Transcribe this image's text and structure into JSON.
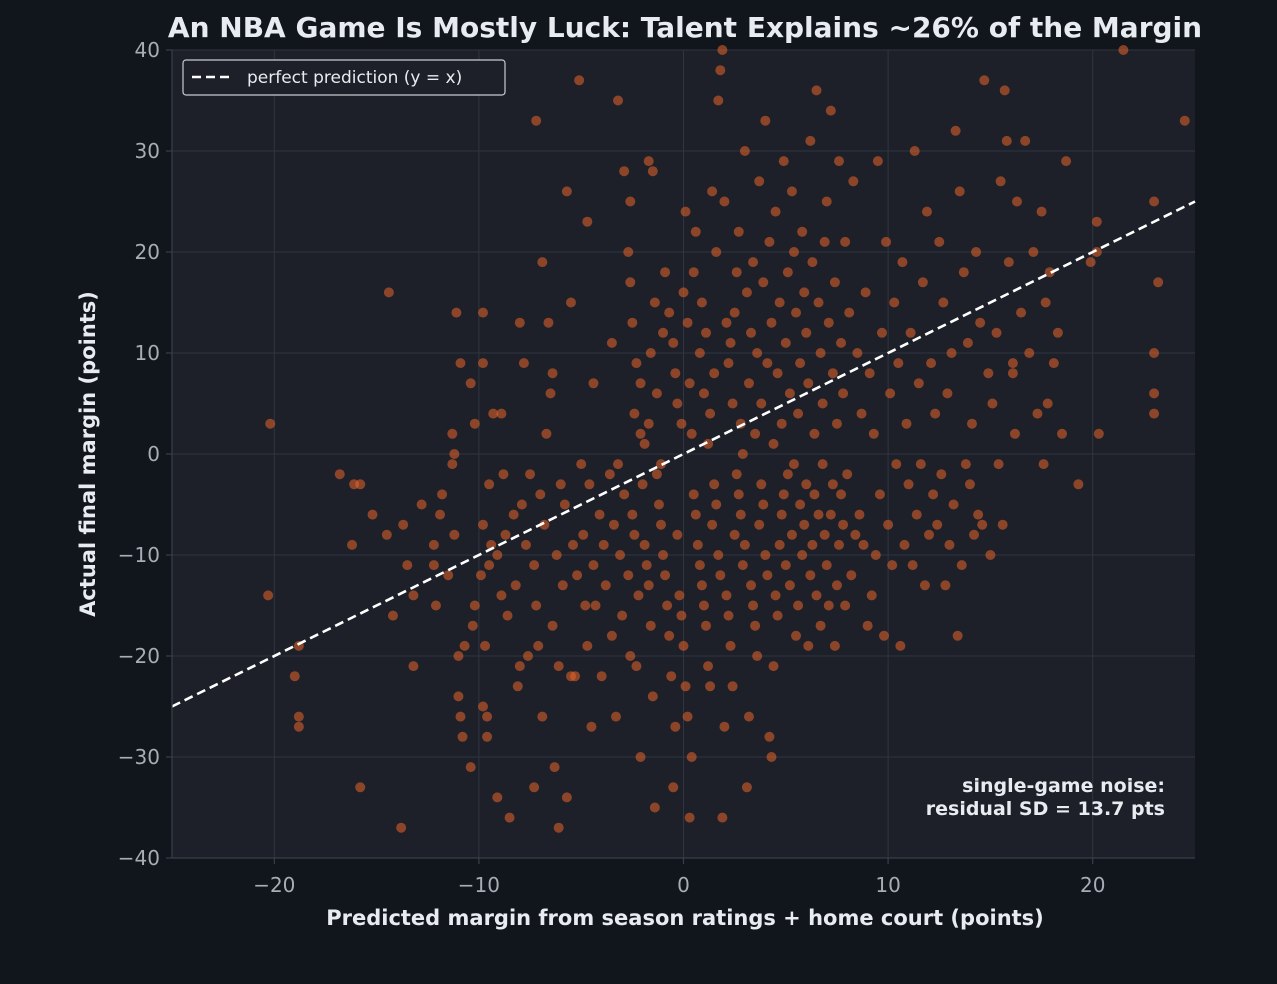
{
  "chart_data": {
    "type": "scatter",
    "title": "An NBA Game Is Mostly Luck: Talent Explains ~26% of the Margin",
    "xlabel": "Predicted margin from season ratings + home court (points)",
    "ylabel": "Actual final margin (points)",
    "xlim": [
      -25,
      25
    ],
    "ylim": [
      -40,
      40
    ],
    "xticks": [
      -20,
      -10,
      0,
      10,
      20
    ],
    "yticks": [
      -40,
      -30,
      -20,
      -10,
      0,
      10,
      20,
      30,
      40
    ],
    "xtick_labels": [
      "−20",
      "−10",
      "0",
      "10",
      "20"
    ],
    "ytick_labels": [
      "−40",
      "−30",
      "−20",
      "−10",
      "0",
      "10",
      "20",
      "30",
      "40"
    ],
    "grid": true,
    "legend": {
      "position": "top-left",
      "entries": [
        "perfect prediction (y = x)"
      ]
    },
    "reference_line": {
      "name": "perfect prediction (y = x)",
      "slope": 1,
      "intercept": 0,
      "style": "dashed",
      "color": "#ffffff"
    },
    "annotation": {
      "line1": "single-game noise:",
      "line2": "residual SD = 13.7 pts",
      "position": "bottom-right"
    },
    "point_color": "#e8642a",
    "points": [
      [
        -20.2,
        3
      ],
      [
        -20.3,
        -14
      ],
      [
        -18.8,
        -19
      ],
      [
        -18.8,
        -26
      ],
      [
        -18.8,
        -27
      ],
      [
        -19,
        -22
      ],
      [
        -16.8,
        -2
      ],
      [
        -16.1,
        -3
      ],
      [
        -16.2,
        -9
      ],
      [
        -15.8,
        -33
      ],
      [
        -15.8,
        -3
      ],
      [
        -15.2,
        -6
      ],
      [
        -14.4,
        16
      ],
      [
        -14.5,
        -8
      ],
      [
        -14.2,
        -16
      ],
      [
        -13.7,
        -7
      ],
      [
        -13.8,
        -37
      ],
      [
        -13.5,
        -11
      ],
      [
        -13.2,
        -14
      ],
      [
        -13.2,
        -21
      ],
      [
        -12.8,
        -5
      ],
      [
        -12.2,
        -9
      ],
      [
        -12.2,
        -11
      ],
      [
        -12.1,
        -15
      ],
      [
        -11.8,
        -4
      ],
      [
        -11.9,
        -6
      ],
      [
        -11.5,
        -12
      ],
      [
        -11.3,
        -1
      ],
      [
        -11.2,
        -8
      ],
      [
        -11,
        -20
      ],
      [
        -11,
        -24
      ],
      [
        -10.9,
        -26
      ],
      [
        -10.8,
        -28
      ],
      [
        -10.7,
        -19
      ],
      [
        -11.2,
        0
      ],
      [
        -11.3,
        2
      ],
      [
        -11.1,
        14
      ],
      [
        -10.9,
        9
      ],
      [
        -10.4,
        -31
      ],
      [
        -10.3,
        -17
      ],
      [
        -10.2,
        -15
      ],
      [
        -10.2,
        3
      ],
      [
        -9.9,
        -12
      ],
      [
        -9.8,
        -7
      ],
      [
        -9.7,
        -19
      ],
      [
        -9.5,
        -11
      ],
      [
        -9.4,
        -9
      ],
      [
        -9.8,
        -25
      ],
      [
        -9.5,
        -3
      ],
      [
        -9.6,
        -26
      ],
      [
        -10.4,
        7
      ],
      [
        -9.8,
        9
      ],
      [
        -9.3,
        4
      ],
      [
        -9.1,
        -34
      ],
      [
        -9.1,
        -10
      ],
      [
        -8.9,
        -14
      ],
      [
        -8.8,
        -2
      ],
      [
        -8.7,
        -8
      ],
      [
        -8.6,
        -16
      ],
      [
        -8.5,
        -36
      ],
      [
        -9.6,
        -28
      ],
      [
        -9.8,
        14
      ],
      [
        -8.9,
        4
      ],
      [
        -8.3,
        -6
      ],
      [
        -8.2,
        -13
      ],
      [
        -8.1,
        -23
      ],
      [
        -8,
        -21
      ],
      [
        -7.9,
        -5
      ],
      [
        -7.7,
        -9
      ],
      [
        -7.6,
        -20
      ],
      [
        -7.5,
        -2
      ],
      [
        -7.3,
        -33
      ],
      [
        -8,
        13
      ],
      [
        -7.8,
        9
      ],
      [
        -7.3,
        -11
      ],
      [
        -7.2,
        -15
      ],
      [
        -7.1,
        -19
      ],
      [
        -7,
        -4
      ],
      [
        -6.9,
        -26
      ],
      [
        -6.8,
        -7
      ],
      [
        -6.7,
        2
      ],
      [
        -6.5,
        6
      ],
      [
        -6.4,
        -17
      ],
      [
        -6.3,
        -31
      ],
      [
        -7.2,
        33
      ],
      [
        -6.9,
        19
      ],
      [
        -6.6,
        13
      ],
      [
        -6.4,
        8
      ],
      [
        -6.2,
        -10
      ],
      [
        -6.1,
        -21
      ],
      [
        -6,
        -3
      ],
      [
        -5.9,
        -13
      ],
      [
        -5.8,
        -5
      ],
      [
        -5.7,
        -34
      ],
      [
        -5.5,
        -22
      ],
      [
        -5.4,
        -9
      ],
      [
        -6.1,
        -37
      ],
      [
        -5.7,
        26
      ],
      [
        -5.5,
        15
      ],
      [
        -5.3,
        -22
      ],
      [
        -5.2,
        -12
      ],
      [
        -5,
        -1
      ],
      [
        -4.9,
        -8
      ],
      [
        -4.8,
        -15
      ],
      [
        -4.7,
        -19
      ],
      [
        -4.6,
        -3
      ],
      [
        -4.5,
        -27
      ],
      [
        -4.4,
        -11
      ],
      [
        -5.1,
        37
      ],
      [
        -4.7,
        23
      ],
      [
        -4.4,
        7
      ],
      [
        -4.3,
        -15
      ],
      [
        -4.1,
        -6
      ],
      [
        -4,
        -22
      ],
      [
        -3.9,
        -9
      ],
      [
        -3.8,
        -13
      ],
      [
        -3.6,
        -2
      ],
      [
        -3.5,
        -18
      ],
      [
        -3.4,
        -7
      ],
      [
        -3.3,
        -26
      ],
      [
        -3.5,
        11
      ],
      [
        -3.2,
        -1
      ],
      [
        -3.1,
        -10
      ],
      [
        -3,
        -16
      ],
      [
        -2.9,
        -4
      ],
      [
        -2.7,
        -12
      ],
      [
        -2.6,
        -20
      ],
      [
        -2.5,
        -6
      ],
      [
        -2.4,
        -8
      ],
      [
        -2.3,
        -21
      ],
      [
        -2.2,
        -14
      ],
      [
        -2.1,
        -30
      ],
      [
        -3.2,
        35
      ],
      [
        -2.9,
        28
      ],
      [
        -2.6,
        25
      ],
      [
        -2.4,
        4
      ],
      [
        -2.1,
        7
      ],
      [
        -2,
        -3
      ],
      [
        -1.9,
        -9
      ],
      [
        -1.8,
        -11
      ],
      [
        -1.7,
        -13
      ],
      [
        -1.6,
        -17
      ],
      [
        -1.5,
        -24
      ],
      [
        -1.4,
        -35
      ],
      [
        -1.7,
        29
      ],
      [
        -1.5,
        28
      ],
      [
        -1.3,
        -2
      ],
      [
        -1.2,
        -5
      ],
      [
        -1.1,
        -7
      ],
      [
        -1,
        -10
      ],
      [
        -0.9,
        -12
      ],
      [
        -0.8,
        -15
      ],
      [
        -0.7,
        -18
      ],
      [
        -0.6,
        -22
      ],
      [
        -0.5,
        -33
      ],
      [
        -0.4,
        -27
      ],
      [
        -2.7,
        20
      ],
      [
        -2.6,
        17
      ],
      [
        -2.5,
        13
      ],
      [
        -2.3,
        9
      ],
      [
        -2.1,
        2
      ],
      [
        -1.9,
        1
      ],
      [
        -1.7,
        3
      ],
      [
        -1.6,
        10
      ],
      [
        -1.4,
        15
      ],
      [
        -1.3,
        6
      ],
      [
        -1.1,
        -1
      ],
      [
        -1,
        12
      ],
      [
        -0.3,
        -8
      ],
      [
        -0.2,
        -14
      ],
      [
        -0.1,
        -16
      ],
      [
        0,
        -19
      ],
      [
        0.1,
        -23
      ],
      [
        0.2,
        -26
      ],
      [
        0.3,
        -36
      ],
      [
        0.4,
        -30
      ],
      [
        0.5,
        -4
      ],
      [
        0.6,
        -6
      ],
      [
        0.7,
        -9
      ],
      [
        0.8,
        -11
      ],
      [
        -0.9,
        18
      ],
      [
        -0.7,
        14
      ],
      [
        -0.5,
        11
      ],
      [
        -0.4,
        8
      ],
      [
        -0.3,
        5
      ],
      [
        -0.1,
        3
      ],
      [
        0,
        16
      ],
      [
        0.1,
        24
      ],
      [
        0.2,
        13
      ],
      [
        0.3,
        7
      ],
      [
        0.4,
        2
      ],
      [
        0.5,
        18
      ],
      [
        0.9,
        -13
      ],
      [
        1,
        -15
      ],
      [
        1.1,
        -17
      ],
      [
        1.2,
        -21
      ],
      [
        1.3,
        -23
      ],
      [
        1.4,
        -7
      ],
      [
        1.5,
        -3
      ],
      [
        1.6,
        -5
      ],
      [
        1.7,
        -10
      ],
      [
        1.8,
        -12
      ],
      [
        1.9,
        -36
      ],
      [
        2,
        -27
      ],
      [
        0.6,
        22
      ],
      [
        0.8,
        10
      ],
      [
        0.9,
        15
      ],
      [
        1,
        6
      ],
      [
        1.1,
        12
      ],
      [
        1.2,
        1
      ],
      [
        1.3,
        4
      ],
      [
        1.4,
        26
      ],
      [
        1.5,
        8
      ],
      [
        1.6,
        20
      ],
      [
        1.7,
        35
      ],
      [
        1.8,
        38
      ],
      [
        2.1,
        -14
      ],
      [
        2.2,
        -16
      ],
      [
        2.3,
        -19
      ],
      [
        2.4,
        -23
      ],
      [
        2.5,
        -8
      ],
      [
        2.6,
        -2
      ],
      [
        2.7,
        -4
      ],
      [
        2.8,
        -6
      ],
      [
        2.9,
        -11
      ],
      [
        3,
        -9
      ],
      [
        3.1,
        -33
      ],
      [
        3.2,
        -26
      ],
      [
        1.9,
        40
      ],
      [
        2,
        25
      ],
      [
        2.1,
        13
      ],
      [
        2.2,
        9
      ],
      [
        2.3,
        11
      ],
      [
        2.4,
        5
      ],
      [
        2.5,
        14
      ],
      [
        2.6,
        18
      ],
      [
        2.7,
        22
      ],
      [
        2.8,
        3
      ],
      [
        2.9,
        0
      ],
      [
        3,
        30
      ],
      [
        3.3,
        -13
      ],
      [
        3.4,
        -15
      ],
      [
        3.5,
        -17
      ],
      [
        3.6,
        -20
      ],
      [
        3.7,
        -7
      ],
      [
        3.8,
        -3
      ],
      [
        3.9,
        -5
      ],
      [
        4,
        -10
      ],
      [
        4.1,
        -12
      ],
      [
        4.2,
        -28
      ],
      [
        4.3,
        -30
      ],
      [
        4.4,
        -21
      ],
      [
        3.1,
        16
      ],
      [
        3.2,
        7
      ],
      [
        3.3,
        12
      ],
      [
        3.4,
        19
      ],
      [
        3.5,
        2
      ],
      [
        3.6,
        10
      ],
      [
        3.7,
        27
      ],
      [
        3.8,
        5
      ],
      [
        3.9,
        17
      ],
      [
        4,
        33
      ],
      [
        4.1,
        9
      ],
      [
        4.2,
        21
      ],
      [
        4.5,
        -14
      ],
      [
        4.6,
        -16
      ],
      [
        4.7,
        -9
      ],
      [
        4.8,
        -6
      ],
      [
        4.9,
        -4
      ],
      [
        5,
        -11
      ],
      [
        5.1,
        -2
      ],
      [
        5.2,
        -13
      ],
      [
        5.3,
        -8
      ],
      [
        5.4,
        -1
      ],
      [
        5.5,
        -18
      ],
      [
        5.6,
        -15
      ],
      [
        4.3,
        13
      ],
      [
        4.4,
        1
      ],
      [
        4.5,
        24
      ],
      [
        4.6,
        8
      ],
      [
        4.7,
        15
      ],
      [
        4.8,
        3
      ],
      [
        4.9,
        29
      ],
      [
        5,
        11
      ],
      [
        5.1,
        18
      ],
      [
        5.2,
        6
      ],
      [
        5.3,
        26
      ],
      [
        5.4,
        20
      ],
      [
        5.7,
        -5
      ],
      [
        5.8,
        -10
      ],
      [
        5.9,
        -7
      ],
      [
        6,
        -3
      ],
      [
        6.1,
        -19
      ],
      [
        6.2,
        -12
      ],
      [
        6.3,
        -9
      ],
      [
        6.4,
        -4
      ],
      [
        6.5,
        -14
      ],
      [
        6.6,
        -6
      ],
      [
        6.7,
        -17
      ],
      [
        6.8,
        -1
      ],
      [
        5.5,
        14
      ],
      [
        5.6,
        4
      ],
      [
        5.7,
        9
      ],
      [
        5.8,
        22
      ],
      [
        5.9,
        16
      ],
      [
        6,
        12
      ],
      [
        6.1,
        7
      ],
      [
        6.2,
        31
      ],
      [
        6.3,
        19
      ],
      [
        6.4,
        2
      ],
      [
        6.5,
        36
      ],
      [
        6.6,
        15
      ],
      [
        6.9,
        -8
      ],
      [
        7,
        -11
      ],
      [
        7.1,
        -15
      ],
      [
        7.2,
        -6
      ],
      [
        7.3,
        -3
      ],
      [
        7.4,
        -19
      ],
      [
        7.5,
        -13
      ],
      [
        7.6,
        -9
      ],
      [
        7.7,
        -4
      ],
      [
        7.8,
        -7
      ],
      [
        7.9,
        -15
      ],
      [
        8,
        -2
      ],
      [
        6.7,
        10
      ],
      [
        6.8,
        5
      ],
      [
        6.9,
        21
      ],
      [
        7,
        25
      ],
      [
        7.1,
        13
      ],
      [
        7.2,
        34
      ],
      [
        7.3,
        8
      ],
      [
        7.4,
        17
      ],
      [
        7.5,
        3
      ],
      [
        7.6,
        29
      ],
      [
        7.7,
        11
      ],
      [
        7.8,
        6
      ],
      [
        8.2,
        -12
      ],
      [
        8.4,
        -8
      ],
      [
        8.6,
        -6
      ],
      [
        8.8,
        -9
      ],
      [
        9,
        -17
      ],
      [
        9.2,
        -14
      ],
      [
        9.4,
        -10
      ],
      [
        9.6,
        -4
      ],
      [
        9.8,
        -18
      ],
      [
        10,
        -7
      ],
      [
        10.2,
        -11
      ],
      [
        10.4,
        -1
      ],
      [
        7.9,
        21
      ],
      [
        8.1,
        14
      ],
      [
        8.3,
        27
      ],
      [
        8.5,
        10
      ],
      [
        8.7,
        4
      ],
      [
        8.9,
        16
      ],
      [
        9.1,
        8
      ],
      [
        9.3,
        2
      ],
      [
        9.5,
        29
      ],
      [
        9.7,
        12
      ],
      [
        9.9,
        21
      ],
      [
        10.1,
        6
      ],
      [
        10.6,
        -19
      ],
      [
        10.8,
        -9
      ],
      [
        11,
        -3
      ],
      [
        11.2,
        -11
      ],
      [
        11.4,
        -6
      ],
      [
        11.6,
        -1
      ],
      [
        11.8,
        -13
      ],
      [
        12,
        -8
      ],
      [
        12.2,
        -4
      ],
      [
        12.4,
        -7
      ],
      [
        12.6,
        -2
      ],
      [
        12.8,
        -13
      ],
      [
        10.3,
        15
      ],
      [
        10.5,
        9
      ],
      [
        10.7,
        19
      ],
      [
        10.9,
        3
      ],
      [
        11.1,
        12
      ],
      [
        11.3,
        30
      ],
      [
        11.5,
        7
      ],
      [
        11.7,
        17
      ],
      [
        11.9,
        24
      ],
      [
        12.1,
        9
      ],
      [
        12.3,
        4
      ],
      [
        12.5,
        21
      ],
      [
        13,
        -9
      ],
      [
        13.2,
        -5
      ],
      [
        13.4,
        -18
      ],
      [
        13.6,
        -11
      ],
      [
        13.8,
        -1
      ],
      [
        14,
        -3
      ],
      [
        14.2,
        -8
      ],
      [
        14.4,
        -6
      ],
      [
        14.6,
        -7
      ],
      [
        15,
        -10
      ],
      [
        15.4,
        -1
      ],
      [
        15.6,
        -7
      ],
      [
        12.7,
        15
      ],
      [
        12.9,
        6
      ],
      [
        13.1,
        10
      ],
      [
        13.3,
        32
      ],
      [
        13.5,
        26
      ],
      [
        13.7,
        18
      ],
      [
        13.9,
        11
      ],
      [
        14.1,
        3
      ],
      [
        14.3,
        20
      ],
      [
        14.5,
        13
      ],
      [
        14.7,
        37
      ],
      [
        14.9,
        8
      ],
      [
        15.1,
        5
      ],
      [
        15.3,
        12
      ],
      [
        15.5,
        27
      ],
      [
        15.7,
        36
      ],
      [
        15.9,
        19
      ],
      [
        16.1,
        9
      ],
      [
        16.3,
        25
      ],
      [
        16.5,
        14
      ],
      [
        16.7,
        31
      ],
      [
        16.9,
        10
      ],
      [
        17.1,
        20
      ],
      [
        17.3,
        4
      ],
      [
        17.5,
        24
      ],
      [
        17.7,
        15
      ],
      [
        17.9,
        18
      ],
      [
        18.1,
        9
      ],
      [
        18.3,
        12
      ],
      [
        18.5,
        2
      ],
      [
        18.7,
        29
      ],
      [
        19.3,
        -3
      ],
      [
        19.9,
        19
      ],
      [
        20.2,
        20
      ],
      [
        20.3,
        2
      ],
      [
        20.2,
        23
      ],
      [
        21.5,
        40
      ],
      [
        23,
        25
      ],
      [
        23,
        10
      ],
      [
        23,
        6
      ],
      [
        23,
        4
      ],
      [
        23.2,
        17
      ],
      [
        24.5,
        33
      ],
      [
        16.2,
        2
      ],
      [
        16.1,
        8
      ],
      [
        17.8,
        5
      ],
      [
        17.6,
        -1
      ],
      [
        15.8,
        31
      ]
    ]
  }
}
